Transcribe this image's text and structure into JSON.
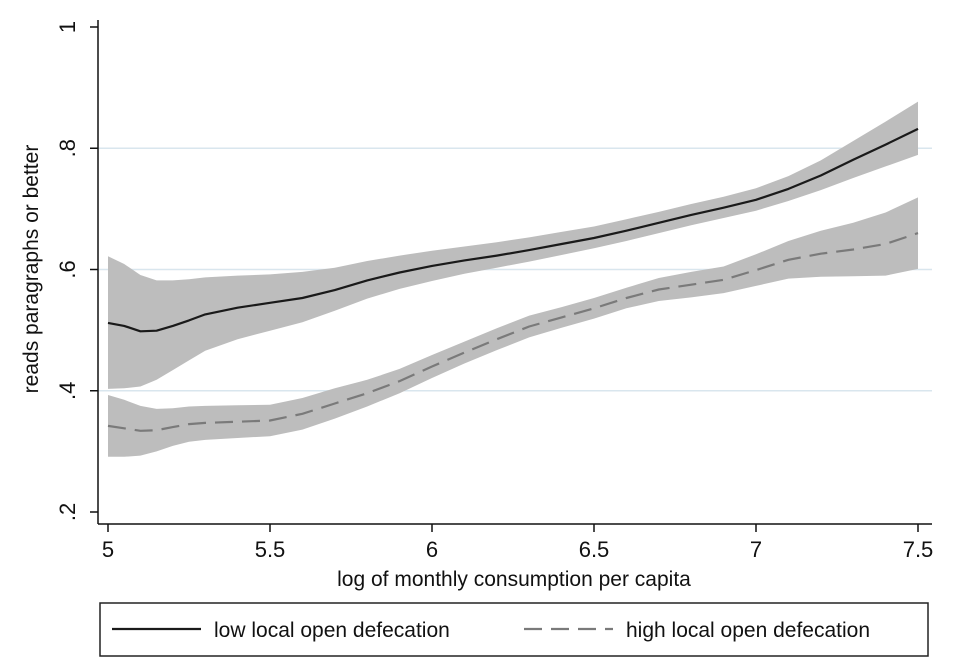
{
  "chart_data": {
    "type": "line",
    "xlabel": "log of monthly consumption per capita",
    "ylabel": "reads paragraphs or better",
    "xlim": [
      5,
      7.5
    ],
    "ylim": [
      0.2,
      1.0
    ],
    "x_ticks": [
      5,
      5.5,
      6,
      6.5,
      7,
      7.5
    ],
    "x_tick_labels": [
      "5",
      "5.5",
      "6",
      "6.5",
      "7",
      "7.5"
    ],
    "y_ticks": [
      0.2,
      0.4,
      0.6,
      0.8,
      1.0
    ],
    "y_tick_labels": [
      ".2",
      ".4",
      ".6",
      ".8",
      "1"
    ],
    "gridlines_y": [
      0.4,
      0.6,
      0.8
    ],
    "legend_position": "bottom",
    "series": [
      {
        "name": "low local open defecation",
        "line_color": "#1a1a1a",
        "band_color": "#bdbdbd",
        "dash": "solid",
        "x": [
          5.0,
          5.05,
          5.1,
          5.15,
          5.2,
          5.25,
          5.3,
          5.4,
          5.5,
          5.6,
          5.7,
          5.8,
          5.9,
          6.0,
          6.1,
          6.2,
          6.3,
          6.4,
          6.5,
          6.6,
          6.7,
          6.8,
          6.9,
          7.0,
          7.1,
          7.2,
          7.3,
          7.4,
          7.5
        ],
        "y": [
          0.512,
          0.507,
          0.498,
          0.499,
          0.507,
          0.516,
          0.526,
          0.537,
          0.545,
          0.553,
          0.566,
          0.582,
          0.595,
          0.606,
          0.615,
          0.623,
          0.632,
          0.642,
          0.652,
          0.664,
          0.677,
          0.69,
          0.702,
          0.715,
          0.733,
          0.755,
          0.781,
          0.806,
          0.832
        ],
        "lower": [
          0.403,
          0.404,
          0.407,
          0.418,
          0.434,
          0.45,
          0.466,
          0.485,
          0.499,
          0.513,
          0.532,
          0.552,
          0.568,
          0.581,
          0.593,
          0.603,
          0.613,
          0.624,
          0.635,
          0.647,
          0.66,
          0.673,
          0.685,
          0.697,
          0.713,
          0.731,
          0.751,
          0.77,
          0.789
        ],
        "upper": [
          0.622,
          0.609,
          0.591,
          0.582,
          0.582,
          0.584,
          0.587,
          0.59,
          0.592,
          0.596,
          0.603,
          0.614,
          0.623,
          0.631,
          0.638,
          0.645,
          0.653,
          0.662,
          0.671,
          0.683,
          0.695,
          0.708,
          0.72,
          0.734,
          0.754,
          0.78,
          0.812,
          0.844,
          0.877
        ]
      },
      {
        "name": "high local open defecation",
        "line_color": "#7a7a7a",
        "band_color": "#bdbdbd",
        "dash": "dashed",
        "x": [
          5.0,
          5.05,
          5.1,
          5.15,
          5.2,
          5.25,
          5.3,
          5.4,
          5.5,
          5.6,
          5.7,
          5.8,
          5.9,
          6.0,
          6.1,
          6.2,
          6.3,
          6.4,
          6.5,
          6.6,
          6.7,
          6.8,
          6.9,
          7.0,
          7.1,
          7.2,
          7.3,
          7.4,
          7.5
        ],
        "y": [
          0.342,
          0.338,
          0.334,
          0.335,
          0.34,
          0.345,
          0.347,
          0.349,
          0.351,
          0.362,
          0.379,
          0.396,
          0.416,
          0.44,
          0.463,
          0.485,
          0.506,
          0.521,
          0.536,
          0.553,
          0.567,
          0.575,
          0.583,
          0.599,
          0.616,
          0.626,
          0.633,
          0.642,
          0.66
        ],
        "lower": [
          0.291,
          0.291,
          0.293,
          0.3,
          0.309,
          0.316,
          0.319,
          0.322,
          0.325,
          0.336,
          0.354,
          0.374,
          0.396,
          0.421,
          0.445,
          0.467,
          0.488,
          0.504,
          0.519,
          0.536,
          0.548,
          0.554,
          0.561,
          0.573,
          0.585,
          0.588,
          0.589,
          0.59,
          0.601
        ],
        "upper": [
          0.393,
          0.385,
          0.375,
          0.37,
          0.371,
          0.374,
          0.375,
          0.376,
          0.377,
          0.388,
          0.404,
          0.418,
          0.436,
          0.459,
          0.481,
          0.503,
          0.524,
          0.538,
          0.553,
          0.57,
          0.586,
          0.596,
          0.605,
          0.625,
          0.647,
          0.664,
          0.677,
          0.694,
          0.719
        ]
      }
    ]
  }
}
